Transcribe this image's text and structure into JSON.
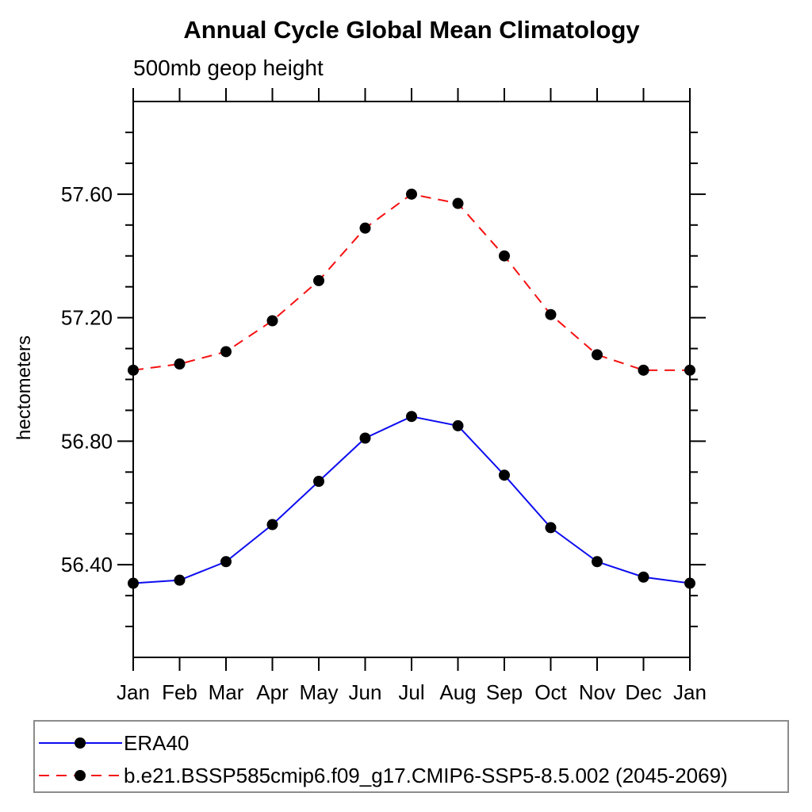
{
  "chart": {
    "title": "Annual Cycle Global Mean Climatology",
    "subtitle": "500mb geop height",
    "ylabel": "hectometers"
  },
  "chart_data": {
    "type": "line",
    "title": "Annual Cycle Global Mean Climatology",
    "subtitle": "500mb geop height",
    "xlabel": "",
    "ylabel": "hectometers",
    "categories": [
      "Jan",
      "Feb",
      "Mar",
      "Apr",
      "May",
      "Jun",
      "Jul",
      "Aug",
      "Sep",
      "Oct",
      "Nov",
      "Dec",
      "Jan"
    ],
    "series": [
      {
        "name": "ERA40",
        "color": "#0d0df0",
        "line_style": "solid",
        "marker": "circle",
        "marker_color": "#000000",
        "values": [
          56.34,
          56.35,
          56.41,
          56.53,
          56.67,
          56.81,
          56.88,
          56.85,
          56.69,
          56.52,
          56.41,
          56.36,
          56.34
        ]
      },
      {
        "name": "b.e21.BSSP585cmip6.f09_g17.CMIP6-SSP5-8.5.002 (2045-2069)",
        "color": "#f51111",
        "line_style": "dashed",
        "marker": "circle",
        "marker_color": "#000000",
        "values": [
          57.03,
          57.05,
          57.09,
          57.19,
          57.32,
          57.49,
          57.6,
          57.57,
          57.4,
          57.21,
          57.08,
          57.03,
          57.03
        ]
      }
    ],
    "ylim": [
      56.1,
      57.9
    ],
    "y_major_ticks": [
      56.4,
      56.8,
      57.2,
      57.6
    ],
    "y_minor_step": 0.1,
    "y_tick_decimals": 2,
    "grid": false,
    "legend_position": "bottom-left-box",
    "frame_color": "#000000"
  }
}
